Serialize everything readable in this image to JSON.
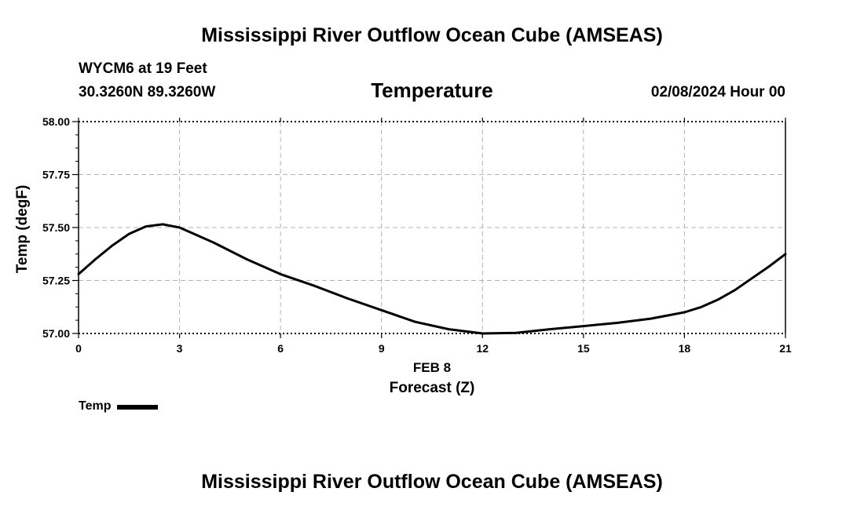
{
  "header": {
    "title": "Mississippi River Outflow Ocean Cube (AMSEAS)",
    "station": "WYCM6 at 19 Feet",
    "coordinates": "30.3260N  89.3260W",
    "subtitle": "Temperature",
    "datetime": "02/08/2024 Hour 00"
  },
  "footer": {
    "title": "Mississippi River Outflow Ocean Cube (AMSEAS)"
  },
  "legend": {
    "label": "Temp"
  },
  "chart_data": {
    "type": "line",
    "title": "Temperature",
    "xlabel": "Forecast (Z)",
    "xlabel_date": "FEB 8",
    "ylabel": "Temp (degF)",
    "xlim": [
      0,
      21
    ],
    "ylim": [
      57.0,
      58.0
    ],
    "x_ticks": [
      0,
      3,
      6,
      9,
      12,
      15,
      18,
      21
    ],
    "x_tick_labels": [
      "0",
      "3",
      "6",
      "9",
      "12",
      "15",
      "18",
      "21"
    ],
    "y_ticks": [
      57.0,
      57.25,
      57.5,
      57.75,
      58.0
    ],
    "y_tick_labels": [
      "57.00",
      "57.25",
      "57.50",
      "57.75",
      "58.00"
    ],
    "grid": true,
    "series": [
      {
        "name": "Temp",
        "color": "#000000",
        "x": [
          0,
          0.5,
          1,
          1.5,
          2,
          2.5,
          3,
          4,
          5,
          6,
          7,
          8,
          9,
          10,
          11,
          12,
          13,
          14,
          15,
          16,
          17,
          18,
          18.5,
          19,
          19.5,
          20,
          20.5,
          21
        ],
        "values": [
          57.28,
          57.35,
          57.415,
          57.47,
          57.505,
          57.515,
          57.5,
          57.43,
          57.35,
          57.28,
          57.225,
          57.165,
          57.11,
          57.055,
          57.02,
          57.0,
          57.003,
          57.02,
          57.035,
          57.05,
          57.07,
          57.1,
          57.125,
          57.16,
          57.205,
          57.26,
          57.315,
          57.375
        ]
      }
    ]
  }
}
